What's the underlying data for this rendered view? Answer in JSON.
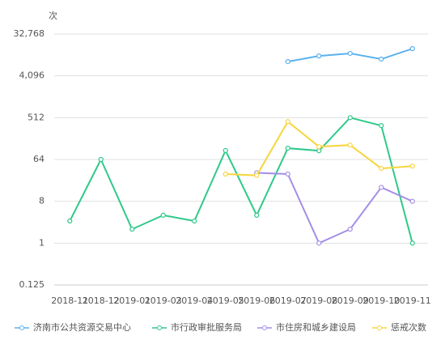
{
  "chart_data": {
    "type": "line",
    "y_label": "次",
    "categories": [
      "2018-11",
      "2018-12",
      "2019-01",
      "2019-03",
      "2019-04",
      "2019-05",
      "2019-06",
      "2019-07",
      "2019-08",
      "2019-09",
      "2019-10",
      "2019-11"
    ],
    "series": [
      {
        "name": "济南市公共资源交易中心",
        "color": "#5ab1ef",
        "values": [
          null,
          null,
          null,
          null,
          null,
          null,
          null,
          8300,
          11000,
          12500,
          9400,
          15800
        ]
      },
      {
        "name": "市行政审批服务局",
        "color": "#2ec98a",
        "values": [
          3,
          64,
          2,
          4,
          3,
          100,
          4,
          112,
          99,
          512,
          345,
          1
        ]
      },
      {
        "name": "市住房和城乡建设局",
        "color": "#a48ee6",
        "values": [
          null,
          null,
          null,
          null,
          null,
          null,
          33,
          31,
          1,
          2,
          16,
          8
        ]
      },
      {
        "name": "惩戒次数",
        "color": "#f8d53f",
        "values": [
          null,
          null,
          null,
          null,
          null,
          31,
          29,
          420,
          121,
          131,
          41,
          46
        ]
      }
    ],
    "log_scale": true,
    "ylim": [
      0.125,
      32768
    ],
    "yticks": [
      0.125,
      1,
      8,
      64,
      512,
      {
        "value": 4096,
        "label": "4,096"
      },
      {
        "value": 32768,
        "label": "32,768"
      }
    ],
    "grid": true,
    "legend": "bottom"
  }
}
